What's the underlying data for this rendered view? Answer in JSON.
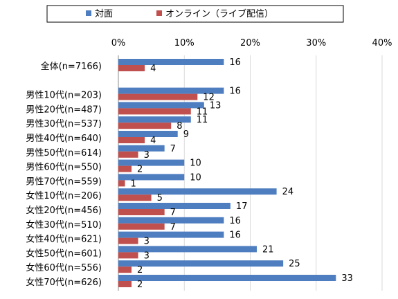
{
  "chart_data": {
    "type": "bar",
    "orientation": "horizontal",
    "categories": [
      "全体(n=7166)",
      "",
      "男性10代(n=203)",
      "男性20代(n=487)",
      "男性30代(n=537)",
      "男性40代(n=640)",
      "男性50代(n=614)",
      "男性60代(n=550)",
      "男性70代(n=559)",
      "女性10代(n=206)",
      "女性20代(n=456)",
      "女性30代(n=510)",
      "女性40代(n=621)",
      "女性50代(n=601)",
      "女性60代(n=556)",
      "女性70代(n=626)"
    ],
    "series": [
      {
        "name": "対面",
        "color": "#4f7ec0",
        "values": [
          16,
          null,
          16,
          13,
          11,
          9,
          7,
          10,
          10,
          24,
          17,
          16,
          16,
          21,
          25,
          33
        ]
      },
      {
        "name": "オンライン（ライブ配信）",
        "color": "#c0504d",
        "values": [
          4,
          null,
          12,
          11,
          8,
          4,
          3,
          2,
          1,
          5,
          7,
          7,
          3,
          3,
          2,
          2
        ]
      }
    ],
    "xticks": [
      "0%",
      "10%",
      "20%",
      "30%",
      "40%"
    ],
    "xlim": [
      0,
      40
    ],
    "axis_position": "top",
    "grid": true,
    "legend_position": "top",
    "data_labels": true
  }
}
